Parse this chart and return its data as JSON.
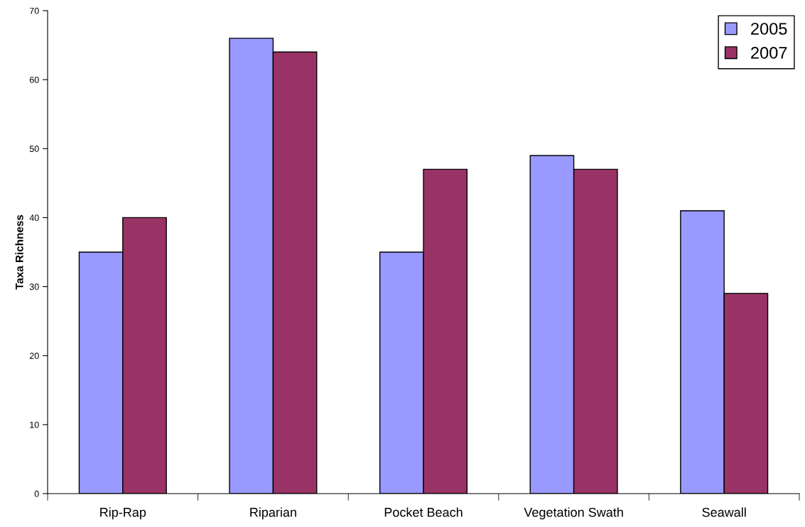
{
  "chart_data": {
    "type": "bar",
    "ylabel": "Taxa Richness",
    "categories": [
      "Rip-Rap",
      "Riparian",
      "Pocket Beach",
      "Vegetation Swath",
      "Seawall"
    ],
    "series": [
      {
        "name": "2005",
        "color": "#9999ff",
        "values": [
          35,
          66,
          35,
          49,
          41
        ]
      },
      {
        "name": "2007",
        "color": "#993366",
        "values": [
          40,
          64,
          47,
          47,
          29
        ]
      }
    ],
    "ylim": [
      0,
      70
    ],
    "yticks": [
      0,
      10,
      20,
      30,
      40,
      50,
      60,
      70
    ],
    "grid": false,
    "legend": "top right"
  }
}
